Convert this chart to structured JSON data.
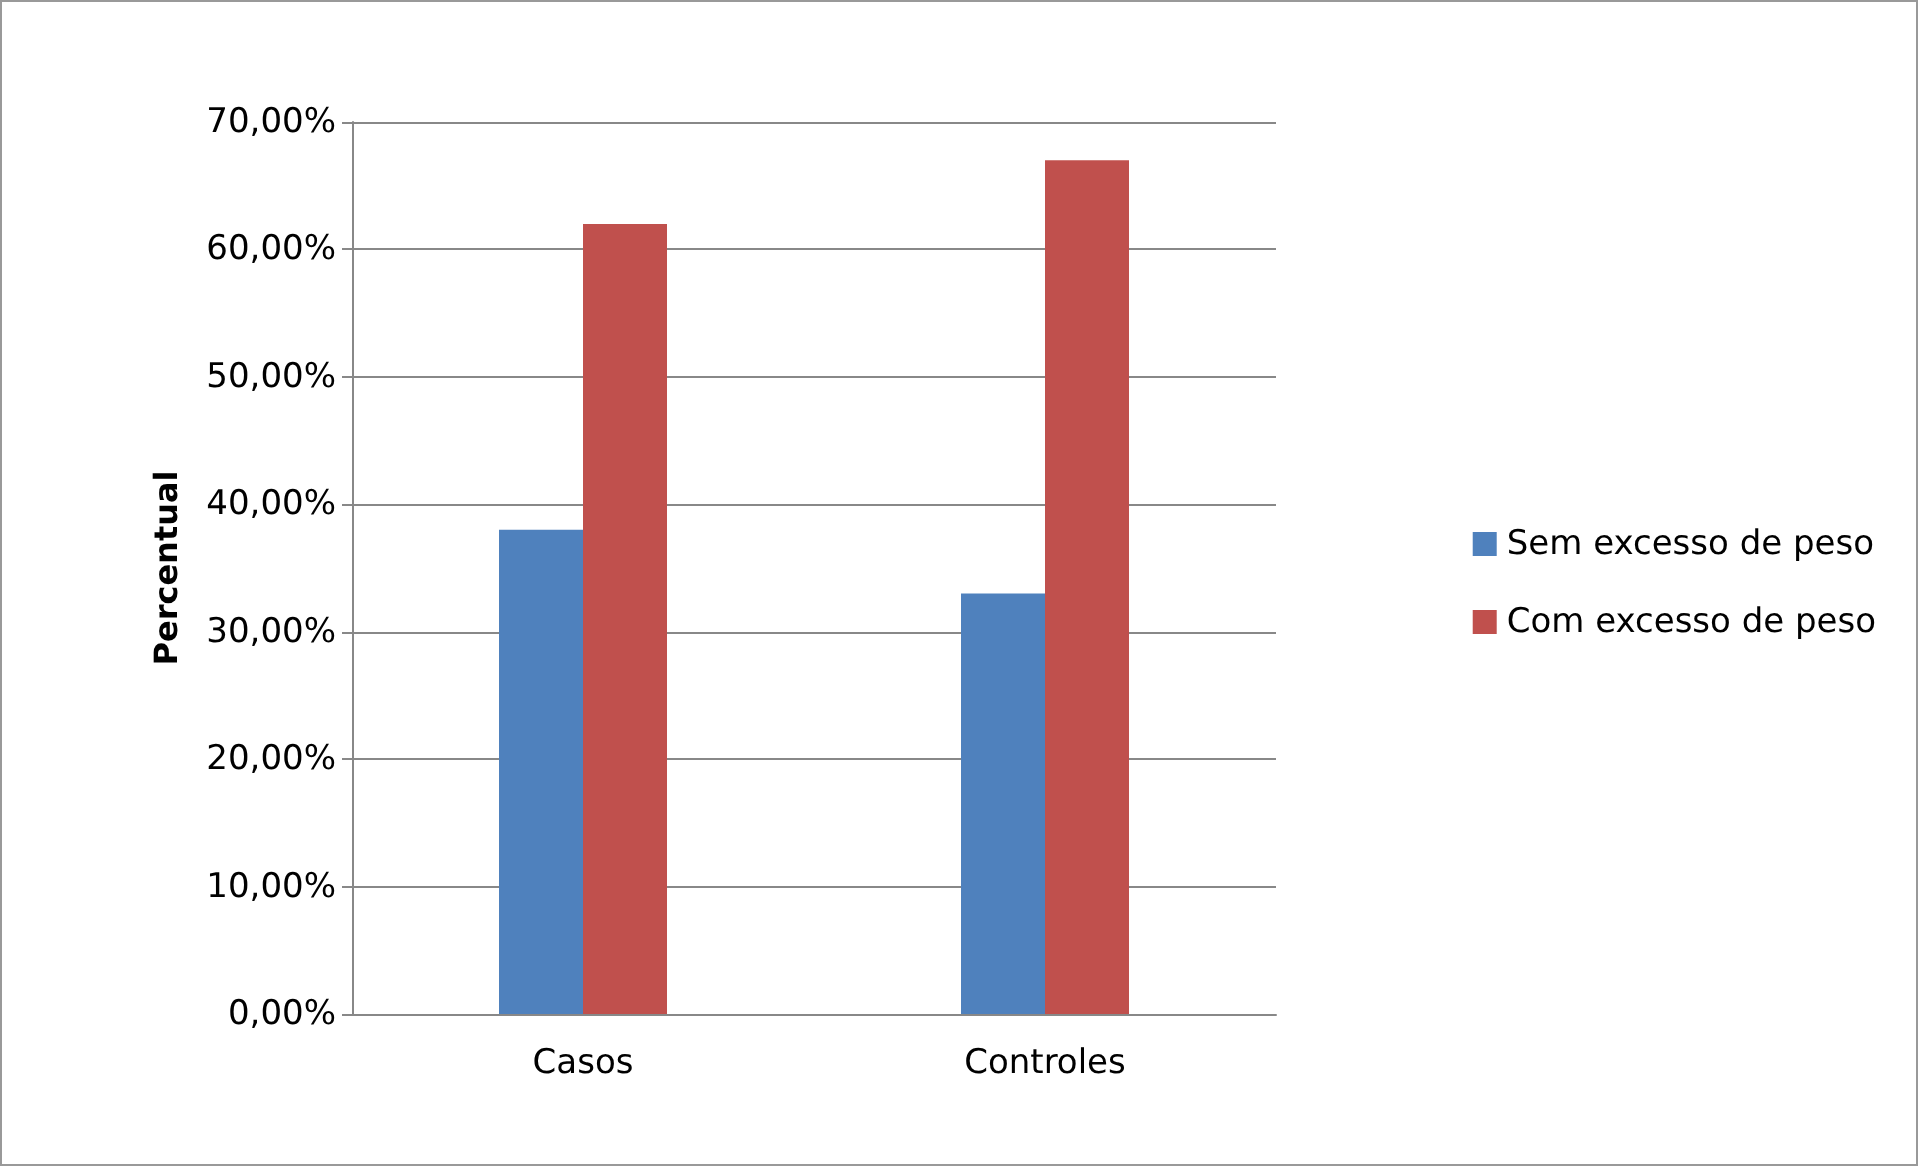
{
  "chart_data": {
    "type": "bar",
    "ylabel": "Percentual",
    "categories": [
      "Casos",
      "Controles"
    ],
    "series": [
      {
        "name": "Sem excesso de peso",
        "color": "#4f81bd",
        "values": [
          38,
          33
        ]
      },
      {
        "name": "Com excesso de peso",
        "color": "#c0504d",
        "values": [
          62,
          67
        ]
      }
    ],
    "ylim": [
      0,
      70
    ],
    "yticks": [
      {
        "value": 0,
        "label": "0,00%"
      },
      {
        "value": 10,
        "label": "10,00%"
      },
      {
        "value": 20,
        "label": "20,00%"
      },
      {
        "value": 30,
        "label": "30,00%"
      },
      {
        "value": 40,
        "label": "40,00%"
      },
      {
        "value": 50,
        "label": "50,00%"
      },
      {
        "value": 60,
        "label": "60,00%"
      },
      {
        "value": 70,
        "label": "70,00%"
      }
    ],
    "grid": "y",
    "legend": "right"
  }
}
